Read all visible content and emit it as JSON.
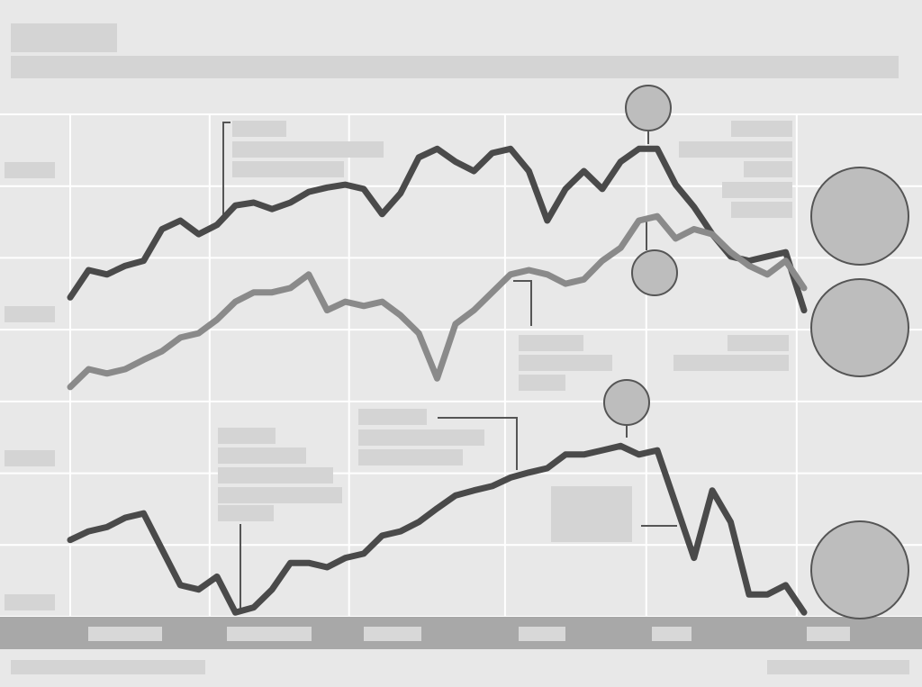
{
  "chart_data": {
    "type": "line",
    "x": [
      0,
      1,
      2,
      3,
      4,
      5,
      6,
      7,
      8,
      9,
      10,
      11,
      12,
      13,
      14,
      15,
      16,
      17,
      18,
      19,
      20,
      21,
      22,
      23,
      24,
      25,
      26,
      27,
      28,
      29,
      30,
      31,
      32,
      33,
      34,
      35,
      36,
      37,
      38,
      39,
      40
    ],
    "series": [
      {
        "color": "#4a4a4a",
        "values": [
          44.5,
          48.3,
          47.7,
          48.9,
          49.6,
          54.0,
          55.2,
          53.3,
          54.6,
          57.3,
          57.7,
          56.8,
          57.7,
          59.2,
          59.8,
          60.2,
          59.6,
          56.1,
          59.0,
          64.0,
          65.2,
          63.4,
          62.1,
          64.6,
          65.2,
          62.1,
          55.2,
          59.6,
          62.1,
          59.6,
          63.4,
          65.2,
          65.2,
          60.2,
          57.1,
          53.3,
          50.2,
          49.6,
          50.2,
          50.8,
          42.7
        ]
      },
      {
        "color": "#8a8a8a",
        "values": [
          32.0,
          34.5,
          33.9,
          34.5,
          35.8,
          37.0,
          38.9,
          39.5,
          41.4,
          43.9,
          45.2,
          45.2,
          45.8,
          47.7,
          42.7,
          43.9,
          43.3,
          43.9,
          42.0,
          39.5,
          33.2,
          40.8,
          42.7,
          45.2,
          47.7,
          48.3,
          47.7,
          46.4,
          47.0,
          49.6,
          51.4,
          55.2,
          55.8,
          52.7,
          54.0,
          53.3,
          50.8,
          48.9,
          47.7,
          49.6,
          45.8
        ]
      },
      {
        "color": "#4a4a4a",
        "values": [
          10.7,
          11.9,
          12.5,
          13.8,
          14.4,
          9.4,
          4.4,
          3.8,
          5.6,
          0.6,
          1.3,
          3.8,
          7.5,
          7.5,
          6.9,
          8.2,
          8.8,
          11.3,
          11.9,
          13.2,
          15.1,
          16.9,
          17.6,
          18.2,
          19.4,
          20.1,
          20.7,
          22.6,
          22.6,
          23.2,
          23.8,
          22.6,
          23.2,
          15.7,
          8.2,
          17.6,
          13.2,
          3.1,
          3.1,
          4.4,
          0.6
        ]
      }
    ],
    "xlim": [
      0,
      40
    ],
    "xticks": [
      0,
      7.6,
      15.2,
      23.7,
      31.4,
      39.6
    ],
    "ylim": [
      0,
      70
    ],
    "yticks": [
      0,
      10,
      20,
      30,
      40,
      50,
      60,
      70
    ],
    "grid": true
  }
}
